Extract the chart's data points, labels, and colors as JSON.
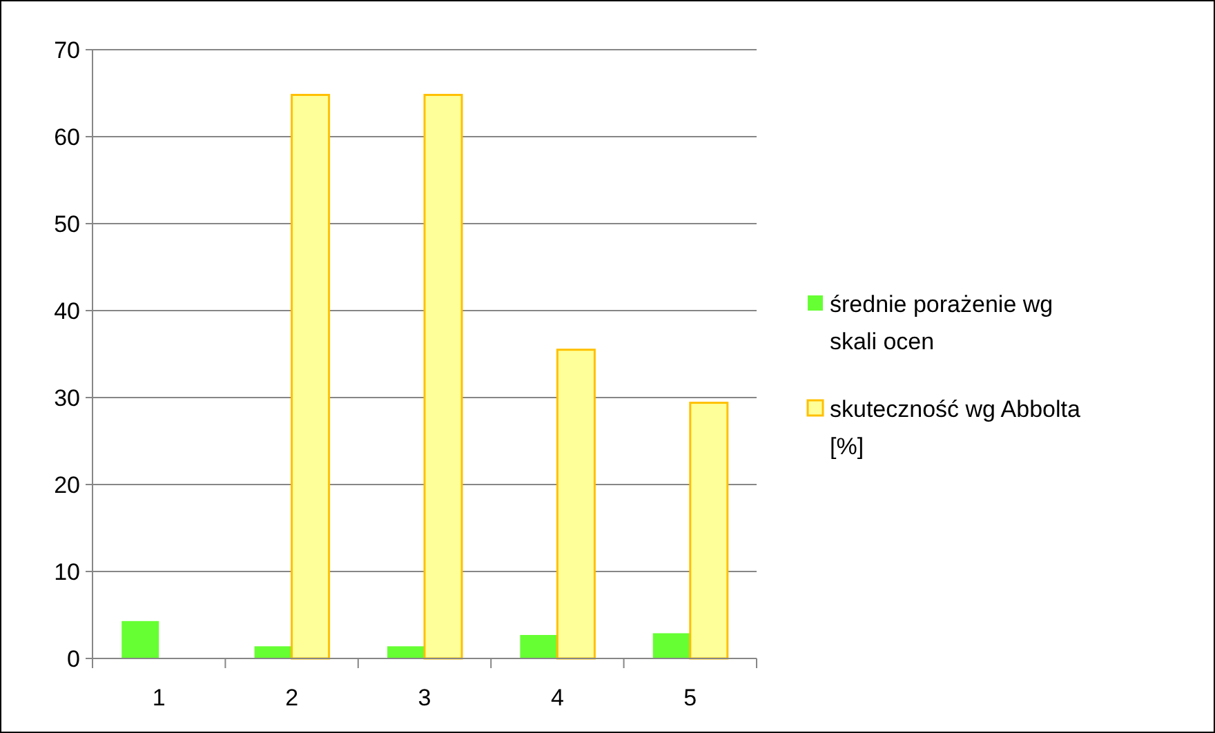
{
  "chart_data": {
    "type": "bar",
    "categories": [
      "1",
      "2",
      "3",
      "4",
      "5"
    ],
    "series": [
      {
        "name": "średnie porażenie wg skali ocen",
        "color": "#66ff33",
        "values": [
          4.3,
          1.4,
          1.4,
          2.7,
          2.9
        ]
      },
      {
        "name": "skuteczność wg Abbolta [%]",
        "color": "#ffff99",
        "values": [
          0,
          64.8,
          64.8,
          35.5,
          29.4
        ]
      }
    ],
    "ylim": [
      0,
      70
    ],
    "yticks": [
      0,
      10,
      20,
      30,
      40,
      50,
      60,
      70
    ],
    "grid": "y",
    "legend": "right"
  }
}
